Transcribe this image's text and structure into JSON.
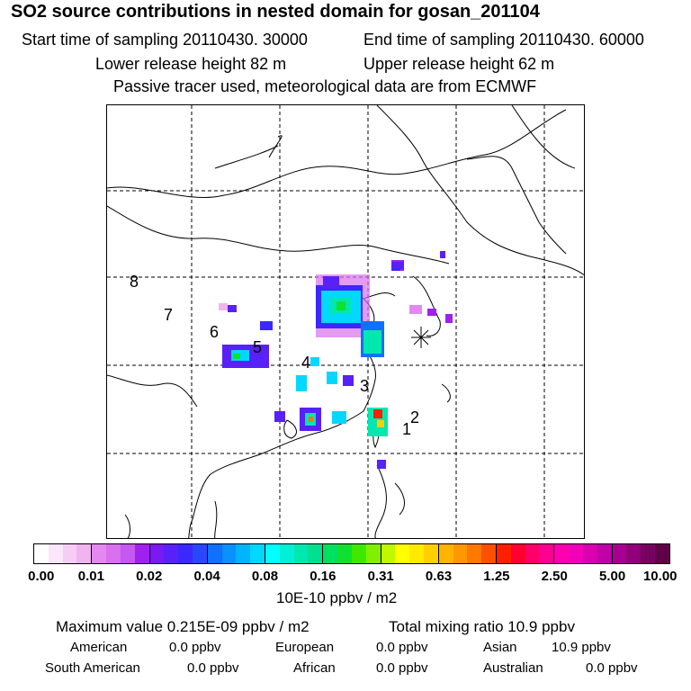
{
  "title": "SO2 source contributions in nested domain for gosan_201104",
  "header": {
    "start_time": "Start time of sampling 20110430. 30000",
    "end_time": "End time of sampling 20110430. 60000",
    "lower_height": "Lower release height   82 m",
    "upper_height": "Upper release height   62 m",
    "tracer_note": "Passive tracer used, meteorological data are from ECMWF"
  },
  "map": {
    "region_labels": [
      "1",
      "2",
      "3",
      "4",
      "5",
      "6",
      "7",
      "8"
    ],
    "receptor_marker": "asterisk-icon"
  },
  "colorbar": {
    "ticks": [
      "0.00",
      "0.01",
      "0.02",
      "0.04",
      "0.08",
      "0.16",
      "0.31",
      "0.63",
      "1.25",
      "2.50",
      "5.00",
      "10.00"
    ],
    "colors": [
      "#ffffff",
      "#fbe6fb",
      "#f6cdf6",
      "#f0b4f0",
      "#e488f0",
      "#d870f0",
      "#c458f0",
      "#a020f0",
      "#7a1af0",
      "#5a20f8",
      "#3a28ff",
      "#2848ff",
      "#1070ff",
      "#0a90ff",
      "#00b4ff",
      "#00d8ff",
      "#00ffff",
      "#00f0d8",
      "#00e8b0",
      "#00e090",
      "#00e060",
      "#10e030",
      "#40e800",
      "#80f000",
      "#c0f800",
      "#ffff00",
      "#ffea00",
      "#ffd000",
      "#ffb400",
      "#ff9800",
      "#ff7800",
      "#ff5000",
      "#ff2000",
      "#ff0030",
      "#ff0068",
      "#ff0090",
      "#ff00b0",
      "#f000b8",
      "#d800b0",
      "#c000a8",
      "#a80090",
      "#900078",
      "#780060",
      "#600048"
    ],
    "units": "10E-10 ppbv / m2"
  },
  "stats": {
    "max_value": "Maximum value  0.215E-09 ppbv / m2",
    "total_mixing": "Total mixing ratio       10.9 ppbv",
    "american_label": "American",
    "american_value": "0.0 ppbv",
    "european_label": "European",
    "european_value": "0.0 ppbv",
    "asian_label": "Asian",
    "asian_value": "10.9 ppbv",
    "south_american_label": "South American",
    "south_american_value": "0.0 ppbv",
    "african_label": "African",
    "african_value": "0.0 ppbv",
    "australian_label": "Australian",
    "australian_value": "0.0 ppbv"
  }
}
